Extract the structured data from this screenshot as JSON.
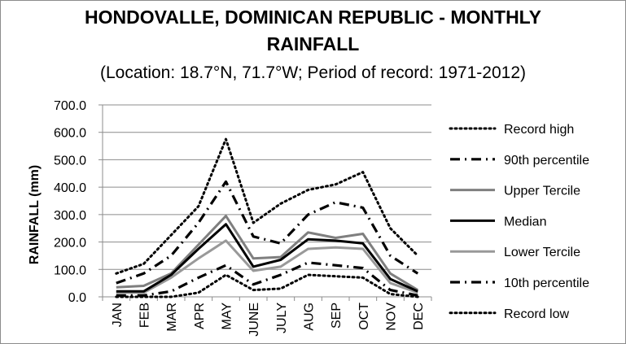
{
  "chart_data": {
    "type": "line",
    "title_line1": "HONDOVALLE, DOMINICAN REPUBLIC - MONTHLY",
    "title_line2": "RAINFALL",
    "subtitle": "(Location: 18.7°N, 71.7°W; Period of record: 1971-2012)",
    "ylabel": "RAINFALL (mm)",
    "xlabel": "",
    "ylim": [
      0,
      700
    ],
    "yticks": [
      "700.0",
      "600.0",
      "500.0",
      "400.0",
      "300.0",
      "200.0",
      "100.0",
      "0.0"
    ],
    "ytick_values": [
      700,
      600,
      500,
      400,
      300,
      200,
      100,
      0
    ],
    "categories": [
      "JAN",
      "FEB",
      "MAR",
      "APR",
      "MAY",
      "JUNE",
      "JULY",
      "AUG",
      "SEP",
      "OCT",
      "NOV",
      "DEC"
    ],
    "grid": true,
    "legend_position": "right",
    "series": [
      {
        "name": "Record high",
        "style": "dotted",
        "color": "#000000",
        "values": [
          85,
          120,
          225,
          330,
          575,
          270,
          340,
          390,
          410,
          455,
          250,
          150
        ]
      },
      {
        "name": "90th percentile",
        "style": "dashdot",
        "color": "#000000",
        "values": [
          50,
          85,
          150,
          270,
          420,
          220,
          195,
          300,
          345,
          325,
          150,
          85
        ]
      },
      {
        "name": "Upper Tercile",
        "style": "solid-gray",
        "color": "#7f7f7f",
        "values": [
          35,
          40,
          85,
          190,
          295,
          140,
          145,
          235,
          215,
          230,
          85,
          25
        ]
      },
      {
        "name": "Median",
        "style": "solid-black",
        "color": "#000000",
        "values": [
          20,
          20,
          80,
          175,
          265,
          110,
          135,
          210,
          205,
          195,
          65,
          20
        ]
      },
      {
        "name": "Lower Tercile",
        "style": "solid-lightgray",
        "color": "#999999",
        "values": [
          15,
          15,
          70,
          140,
          205,
          95,
          110,
          175,
          180,
          175,
          50,
          15
        ]
      },
      {
        "name": "10th percentile",
        "style": "dashdot",
        "color": "#000000",
        "values": [
          5,
          5,
          20,
          70,
          115,
          45,
          80,
          125,
          115,
          105,
          25,
          5
        ]
      },
      {
        "name": "Record low",
        "style": "dotted",
        "color": "#000000",
        "values": [
          0,
          0,
          0,
          15,
          80,
          25,
          30,
          80,
          75,
          70,
          10,
          0
        ]
      }
    ]
  }
}
